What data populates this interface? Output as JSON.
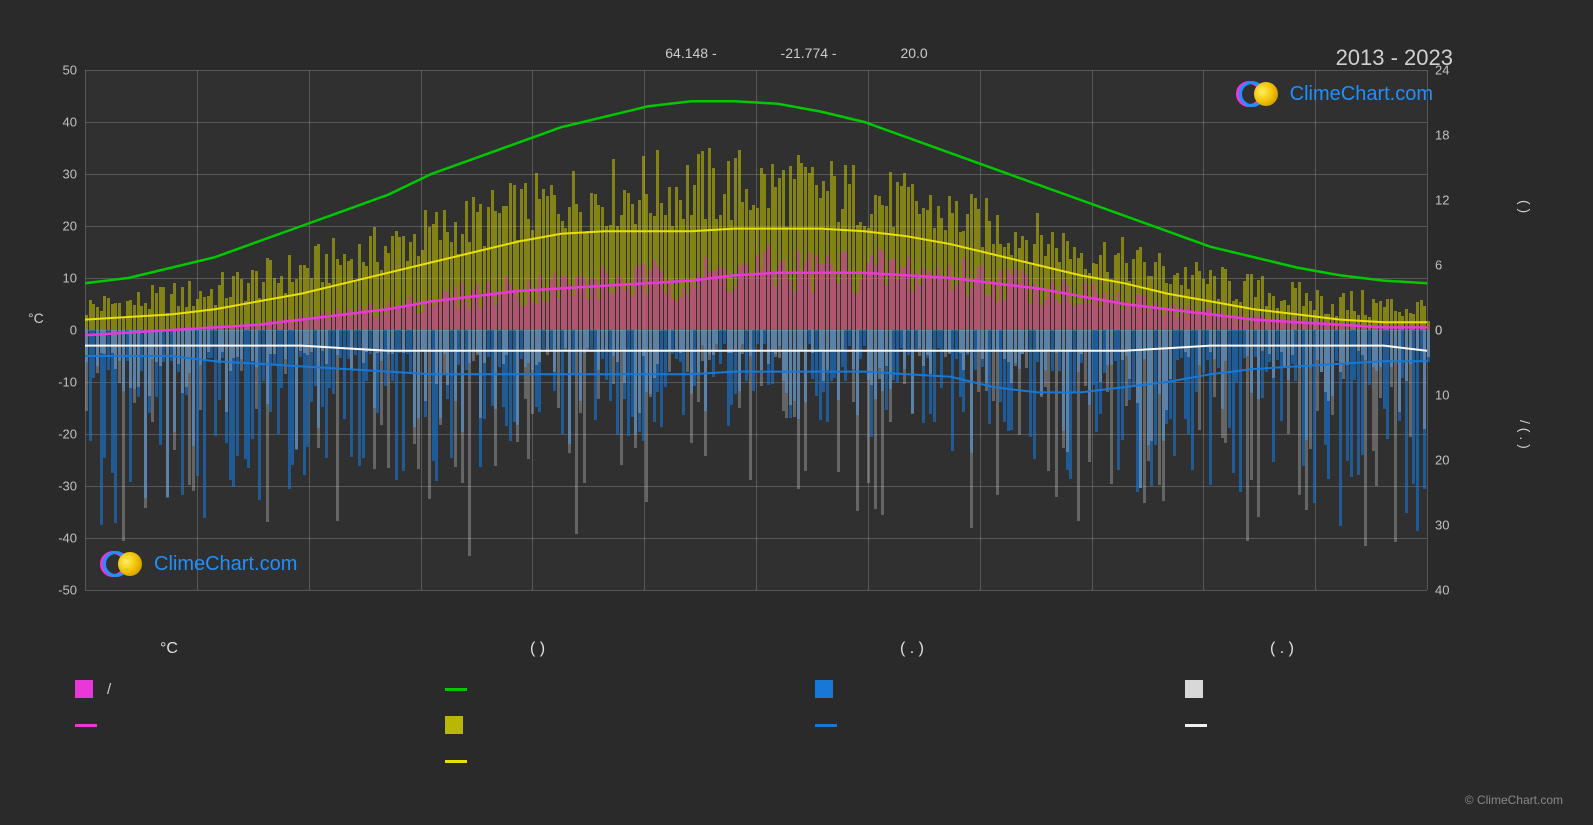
{
  "header": {
    "lat": "64.148 -",
    "lon": "-21.774 -",
    "elev": "20.0"
  },
  "year_range": "2013 - 2023",
  "axis": {
    "left_title": "°C",
    "right_title_top": "(        )",
    "right_title_bottom": "/   (   .  )",
    "y_left": {
      "min": -50,
      "max": 50,
      "step": 10
    },
    "y_right_top": {
      "min": 0,
      "max": 24,
      "step": 6
    },
    "y_right_bottom": {
      "min": 0,
      "max": 40,
      "step": 10
    }
  },
  "months": [
    "",
    "",
    "",
    "",
    "",
    "",
    "",
    "",
    "",
    "",
    "",
    ""
  ],
  "colors": {
    "bg": "#2a2a2a",
    "plot_bg": "#303030",
    "grid": "#808080",
    "green": "#00c800",
    "yellow": "#e8e000",
    "magenta": "#e838d8",
    "white": "#f8f8f8",
    "blue": "#1878d8",
    "gray_bar": "#b0b0b0",
    "yellow_bar": "rgba(200,200,0,0.55)",
    "magenta_bar": "rgba(220,40,200,0.5)",
    "blue_bar": "rgba(24,120,216,0.6)",
    "white_bar": "rgba(200,200,200,0.35)"
  },
  "curves": {
    "green": [
      9,
      10,
      12,
      14,
      17,
      20,
      23,
      26,
      30,
      33,
      36,
      39,
      41,
      43,
      44,
      44,
      43.5,
      42,
      40,
      37,
      34,
      31,
      28,
      25,
      22,
      19,
      16,
      14,
      12,
      10.5,
      9.5,
      9
    ],
    "yellow": [
      2,
      2.5,
      3,
      4,
      5.5,
      7,
      9,
      11,
      13,
      15,
      17,
      18.5,
      19,
      19,
      19,
      19.5,
      19.5,
      19.5,
      19,
      18,
      16.5,
      14.5,
      12.5,
      10.5,
      9,
      7,
      5.5,
      4,
      3,
      2,
      1.5,
      1.5
    ],
    "magenta": [
      -1,
      -0.5,
      0,
      0.5,
      1,
      2,
      3,
      4,
      5.5,
      6.5,
      7.5,
      8,
      8.5,
      9,
      9.5,
      10.5,
      11,
      11,
      11,
      10.5,
      10,
      9,
      8,
      6.5,
      5,
      4,
      3,
      2,
      1.5,
      1,
      0.5,
      0.5
    ],
    "white": [
      -3,
      -3,
      -3,
      -3,
      -3,
      -3,
      -3.5,
      -4,
      -4,
      -4,
      -4,
      -4,
      -4,
      -4,
      -4,
      -4,
      -4,
      -4,
      -4,
      -4,
      -4,
      -4,
      -4,
      -4,
      -4,
      -3.5,
      -3,
      -3,
      -3,
      -3,
      -3,
      -4
    ],
    "blue": [
      -5,
      -5,
      -5,
      -6,
      -6.5,
      -7,
      -7.5,
      -8,
      -8.5,
      -8.5,
      -8.5,
      -8.5,
      -8.5,
      -8.5,
      -8.5,
      -8,
      -8,
      -8,
      -8,
      -8.5,
      -9,
      -11,
      -12,
      -12,
      -11,
      -10,
      -8.5,
      -7.5,
      -7,
      -6.5,
      -6,
      -6
    ]
  },
  "density": 365,
  "watermark_text": "ClimeChart.com",
  "copyright": "© ClimeChart.com",
  "legend": {
    "headers": [
      "°C",
      "(         )",
      "(   .  )",
      "(   .  )"
    ],
    "col1": [
      {
        "type": "block",
        "color": "#e838d8",
        "label": "/"
      },
      {
        "type": "line",
        "color": "#e838d8",
        "label": ""
      }
    ],
    "col2": [
      {
        "type": "line",
        "color": "#00c800",
        "label": ""
      },
      {
        "type": "block",
        "color": "rgba(200,200,0,0.9)",
        "label": ""
      },
      {
        "type": "line",
        "color": "#e8e000",
        "label": ""
      }
    ],
    "col3": [
      {
        "type": "block",
        "color": "#1878d8",
        "label": ""
      },
      {
        "type": "line",
        "color": "#1878d8",
        "label": ""
      }
    ],
    "col4": [
      {
        "type": "block",
        "color": "#d8d8d8",
        "label": ""
      },
      {
        "type": "line",
        "color": "#f0f0f0",
        "label": ""
      }
    ]
  }
}
